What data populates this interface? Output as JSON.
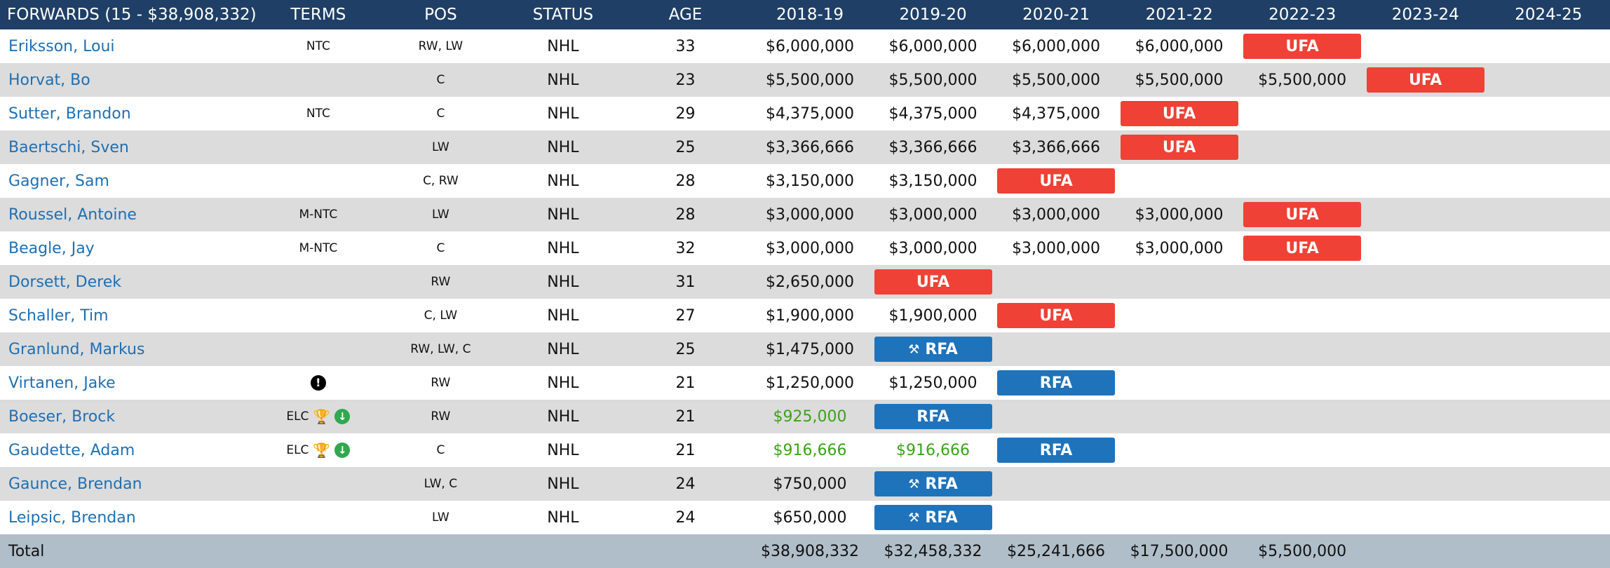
{
  "header": {
    "group": "FORWARDS (15 - $38,908,332)",
    "terms": "TERMS",
    "pos": "POS",
    "status": "STATUS",
    "age": "AGE",
    "years": [
      "2018-19",
      "2019-20",
      "2020-21",
      "2021-22",
      "2022-23",
      "2023-24",
      "2024-25"
    ]
  },
  "colors": {
    "ufa": "#ef4136",
    "rfa": "#1f73bb",
    "header_bg": "#1f3f66",
    "link": "#1f6fb2",
    "elc_green": "#3aa317"
  },
  "players": [
    {
      "name": "Eriksson, Loui",
      "terms": "NTC",
      "pos": "RW, LW",
      "status": "NHL",
      "age": "33",
      "years": [
        "$6,000,000",
        "$6,000,000",
        "$6,000,000",
        "$6,000,000",
        "UFA",
        "",
        ""
      ]
    },
    {
      "name": "Horvat, Bo",
      "terms": "",
      "pos": "C",
      "status": "NHL",
      "age": "23",
      "years": [
        "$5,500,000",
        "$5,500,000",
        "$5,500,000",
        "$5,500,000",
        "$5,500,000",
        "UFA",
        ""
      ]
    },
    {
      "name": "Sutter, Brandon",
      "terms": "NTC",
      "pos": "C",
      "status": "NHL",
      "age": "29",
      "years": [
        "$4,375,000",
        "$4,375,000",
        "$4,375,000",
        "UFA",
        "",
        "",
        ""
      ]
    },
    {
      "name": "Baertschi, Sven",
      "terms": "",
      "pos": "LW",
      "status": "NHL",
      "age": "25",
      "years": [
        "$3,366,666",
        "$3,366,666",
        "$3,366,666",
        "UFA",
        "",
        "",
        ""
      ]
    },
    {
      "name": "Gagner, Sam",
      "terms": "",
      "pos": "C, RW",
      "status": "NHL",
      "age": "28",
      "years": [
        "$3,150,000",
        "$3,150,000",
        "UFA",
        "",
        "",
        "",
        ""
      ]
    },
    {
      "name": "Roussel, Antoine",
      "terms": "M-NTC",
      "pos": "LW",
      "status": "NHL",
      "age": "28",
      "years": [
        "$3,000,000",
        "$3,000,000",
        "$3,000,000",
        "$3,000,000",
        "UFA",
        "",
        ""
      ]
    },
    {
      "name": "Beagle, Jay",
      "terms": "M-NTC",
      "pos": "C",
      "status": "NHL",
      "age": "32",
      "years": [
        "$3,000,000",
        "$3,000,000",
        "$3,000,000",
        "$3,000,000",
        "UFA",
        "",
        ""
      ]
    },
    {
      "name": "Dorsett, Derek",
      "terms": "",
      "pos": "RW",
      "status": "NHL",
      "age": "31",
      "years": [
        "$2,650,000",
        "UFA",
        "",
        "",
        "",
        "",
        ""
      ]
    },
    {
      "name": "Schaller, Tim",
      "terms": "",
      "pos": "C, LW",
      "status": "NHL",
      "age": "27",
      "years": [
        "$1,900,000",
        "$1,900,000",
        "UFA",
        "",
        "",
        "",
        ""
      ]
    },
    {
      "name": "Granlund, Markus",
      "terms": "",
      "pos": "RW, LW, C",
      "status": "NHL",
      "age": "25",
      "years": [
        "$1,475,000",
        "RFA*",
        "",
        "",
        "",
        "",
        ""
      ]
    },
    {
      "name": "Virtanen, Jake",
      "terms": "!",
      "pos": "RW",
      "status": "NHL",
      "age": "21",
      "years": [
        "$1,250,000",
        "$1,250,000",
        "RFA",
        "",
        "",
        "",
        ""
      ]
    },
    {
      "name": "Boeser, Brock",
      "terms": "ELC",
      "pos": "RW",
      "status": "NHL",
      "age": "21",
      "years": [
        "$925,000",
        "RFA",
        "",
        "",
        "",
        "",
        ""
      ]
    },
    {
      "name": "Gaudette, Adam",
      "terms": "ELC",
      "pos": "C",
      "status": "NHL",
      "age": "21",
      "years": [
        "$916,666",
        "$916,666",
        "RFA",
        "",
        "",
        "",
        ""
      ]
    },
    {
      "name": "Gaunce, Brendan",
      "terms": "",
      "pos": "LW, C",
      "status": "NHL",
      "age": "24",
      "years": [
        "$750,000",
        "RFA*",
        "",
        "",
        "",
        "",
        ""
      ]
    },
    {
      "name": "Leipsic, Brendan",
      "terms": "",
      "pos": "LW",
      "status": "NHL",
      "age": "24",
      "years": [
        "$650,000",
        "RFA*",
        "",
        "",
        "",
        "",
        ""
      ]
    }
  ],
  "badges": {
    "ufa": "UFA",
    "rfa": "RFA"
  },
  "total": {
    "label": "Total",
    "years": [
      "$38,908,332",
      "$32,458,332",
      "$25,241,666",
      "$17,500,000",
      "$5,500,000",
      "",
      ""
    ]
  }
}
